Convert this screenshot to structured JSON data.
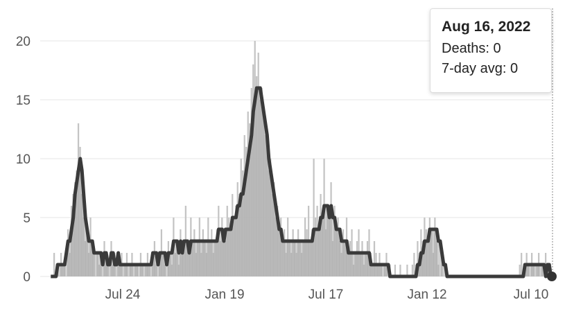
{
  "chart_data": {
    "type": "bar",
    "title": "",
    "xlabel": "",
    "ylabel": "",
    "ylim": [
      0,
      21
    ],
    "y_ticks": [
      0,
      5,
      10,
      15,
      20
    ],
    "x_ticks": [
      "Jul 24",
      "Jan 19",
      "Jul 17",
      "Jan 12",
      "Jul 10"
    ],
    "series": [
      {
        "role": "daily",
        "color": "#c4c4c4",
        "values": [
          0,
          0,
          2,
          0,
          1,
          0,
          2,
          1,
          1,
          0,
          4,
          2,
          6,
          7,
          8,
          9,
          13,
          11,
          7,
          5,
          3,
          4,
          2,
          5,
          3,
          2,
          0,
          2,
          1,
          2,
          0,
          3,
          2,
          1,
          0,
          3,
          1,
          2,
          0,
          2,
          1,
          2,
          0,
          1,
          2,
          0,
          1,
          2,
          0,
          1,
          1,
          0,
          2,
          1,
          0,
          1,
          2,
          1,
          0,
          2,
          3,
          1,
          0,
          2,
          4,
          2,
          1,
          0,
          3,
          2,
          1,
          5,
          2,
          3,
          1,
          4,
          2,
          3,
          6,
          3,
          2,
          5,
          3,
          4,
          2,
          3,
          5,
          2,
          4,
          3,
          2,
          5,
          3,
          4,
          2,
          3,
          4,
          6,
          3,
          5,
          4,
          3,
          6,
          5,
          4,
          7,
          5,
          6,
          8,
          7,
          10,
          9,
          12,
          11,
          14,
          13,
          16,
          18,
          20,
          17,
          19,
          15,
          16,
          14,
          12,
          11,
          9,
          10,
          7,
          8,
          5,
          6,
          4,
          5,
          3,
          4,
          2,
          5,
          3,
          2,
          4,
          3,
          2,
          4,
          3,
          2,
          3,
          5,
          4,
          6,
          3,
          4,
          10,
          5,
          6,
          4,
          7,
          5,
          10,
          4,
          6,
          5,
          8,
          3,
          6,
          4,
          5,
          3,
          2,
          4,
          3,
          5,
          2,
          3,
          4,
          1,
          2,
          3,
          4,
          2,
          3,
          1,
          2,
          3,
          4,
          2,
          1,
          3,
          2,
          1,
          2,
          1,
          0,
          1,
          2,
          0,
          1,
          0,
          0,
          1,
          0,
          0,
          1,
          0,
          0,
          0,
          1,
          0,
          0,
          1,
          2,
          1,
          3,
          2,
          4,
          3,
          5,
          4,
          3,
          5,
          4,
          2,
          5,
          3,
          1,
          0,
          1,
          0,
          0,
          0,
          0,
          0,
          0,
          0,
          0,
          0,
          0,
          0,
          0,
          0,
          0,
          0,
          0,
          0,
          0,
          0,
          0,
          0,
          0,
          0,
          0,
          0,
          0,
          0,
          0,
          0,
          0,
          0,
          0,
          0,
          0,
          0,
          0,
          0,
          0,
          0,
          0,
          0,
          0,
          0,
          0,
          1,
          2,
          0,
          1,
          2,
          1,
          0,
          2,
          1,
          0,
          1,
          2,
          0,
          1,
          0,
          2,
          1,
          0,
          0
        ]
      },
      {
        "role": "7-day average",
        "color": "#3a3a3a",
        "values": [
          0,
          0,
          0,
          0,
          1,
          1,
          1,
          1,
          1,
          2,
          3,
          3,
          4,
          5,
          7,
          8,
          9,
          10,
          9,
          7,
          5,
          4,
          3,
          3,
          3,
          2,
          2,
          2,
          2,
          2,
          1,
          2,
          2,
          1,
          1,
          2,
          2,
          1,
          1,
          2,
          1,
          1,
          1,
          1,
          1,
          1,
          1,
          1,
          1,
          1,
          1,
          1,
          1,
          1,
          1,
          1,
          1,
          1,
          1,
          2,
          2,
          2,
          1,
          2,
          2,
          2,
          2,
          1,
          2,
          2,
          2,
          3,
          3,
          3,
          2,
          3,
          2,
          3,
          3,
          3,
          2,
          3,
          3,
          3,
          3,
          3,
          3,
          3,
          3,
          3,
          3,
          3,
          3,
          3,
          3,
          3,
          3,
          4,
          4,
          4,
          3,
          4,
          4,
          4,
          4,
          5,
          5,
          5,
          6,
          6,
          7,
          7,
          8,
          9,
          10,
          11,
          12,
          14,
          15,
          16,
          16,
          16,
          15,
          14,
          13,
          12,
          10,
          9,
          8,
          7,
          6,
          5,
          4,
          4,
          3,
          3,
          3,
          3,
          3,
          3,
          3,
          3,
          3,
          3,
          3,
          3,
          3,
          3,
          3,
          3,
          3,
          3,
          4,
          4,
          4,
          4,
          5,
          5,
          6,
          6,
          6,
          5,
          6,
          5,
          5,
          4,
          4,
          4,
          3,
          3,
          3,
          3,
          2,
          2,
          2,
          2,
          2,
          2,
          2,
          2,
          2,
          2,
          2,
          2,
          2,
          1,
          1,
          1,
          1,
          1,
          1,
          1,
          1,
          1,
          1,
          1,
          0,
          0,
          0,
          0,
          0,
          0,
          0,
          0,
          0,
          0,
          0,
          0,
          0,
          0,
          0,
          0,
          1,
          1,
          2,
          2,
          3,
          3,
          3,
          4,
          4,
          4,
          4,
          4,
          3,
          3,
          2,
          1,
          1,
          0,
          0,
          0,
          0,
          0,
          0,
          0,
          0,
          0,
          0,
          0,
          0,
          0,
          0,
          0,
          0,
          0,
          0,
          0,
          0,
          0,
          0,
          0,
          0,
          0,
          0,
          0,
          0,
          0,
          0,
          0,
          0,
          0,
          0,
          0,
          0,
          0,
          0,
          0,
          0,
          0,
          0,
          0,
          0,
          0,
          1,
          1,
          1,
          1,
          1,
          1,
          1,
          1,
          1,
          1,
          1,
          1,
          0,
          1,
          1,
          0,
          0,
          0
        ]
      }
    ]
  },
  "tooltip": {
    "date": "Aug 16, 2022",
    "deaths": "Deaths: 0",
    "avg": "7-day avg: 0"
  }
}
